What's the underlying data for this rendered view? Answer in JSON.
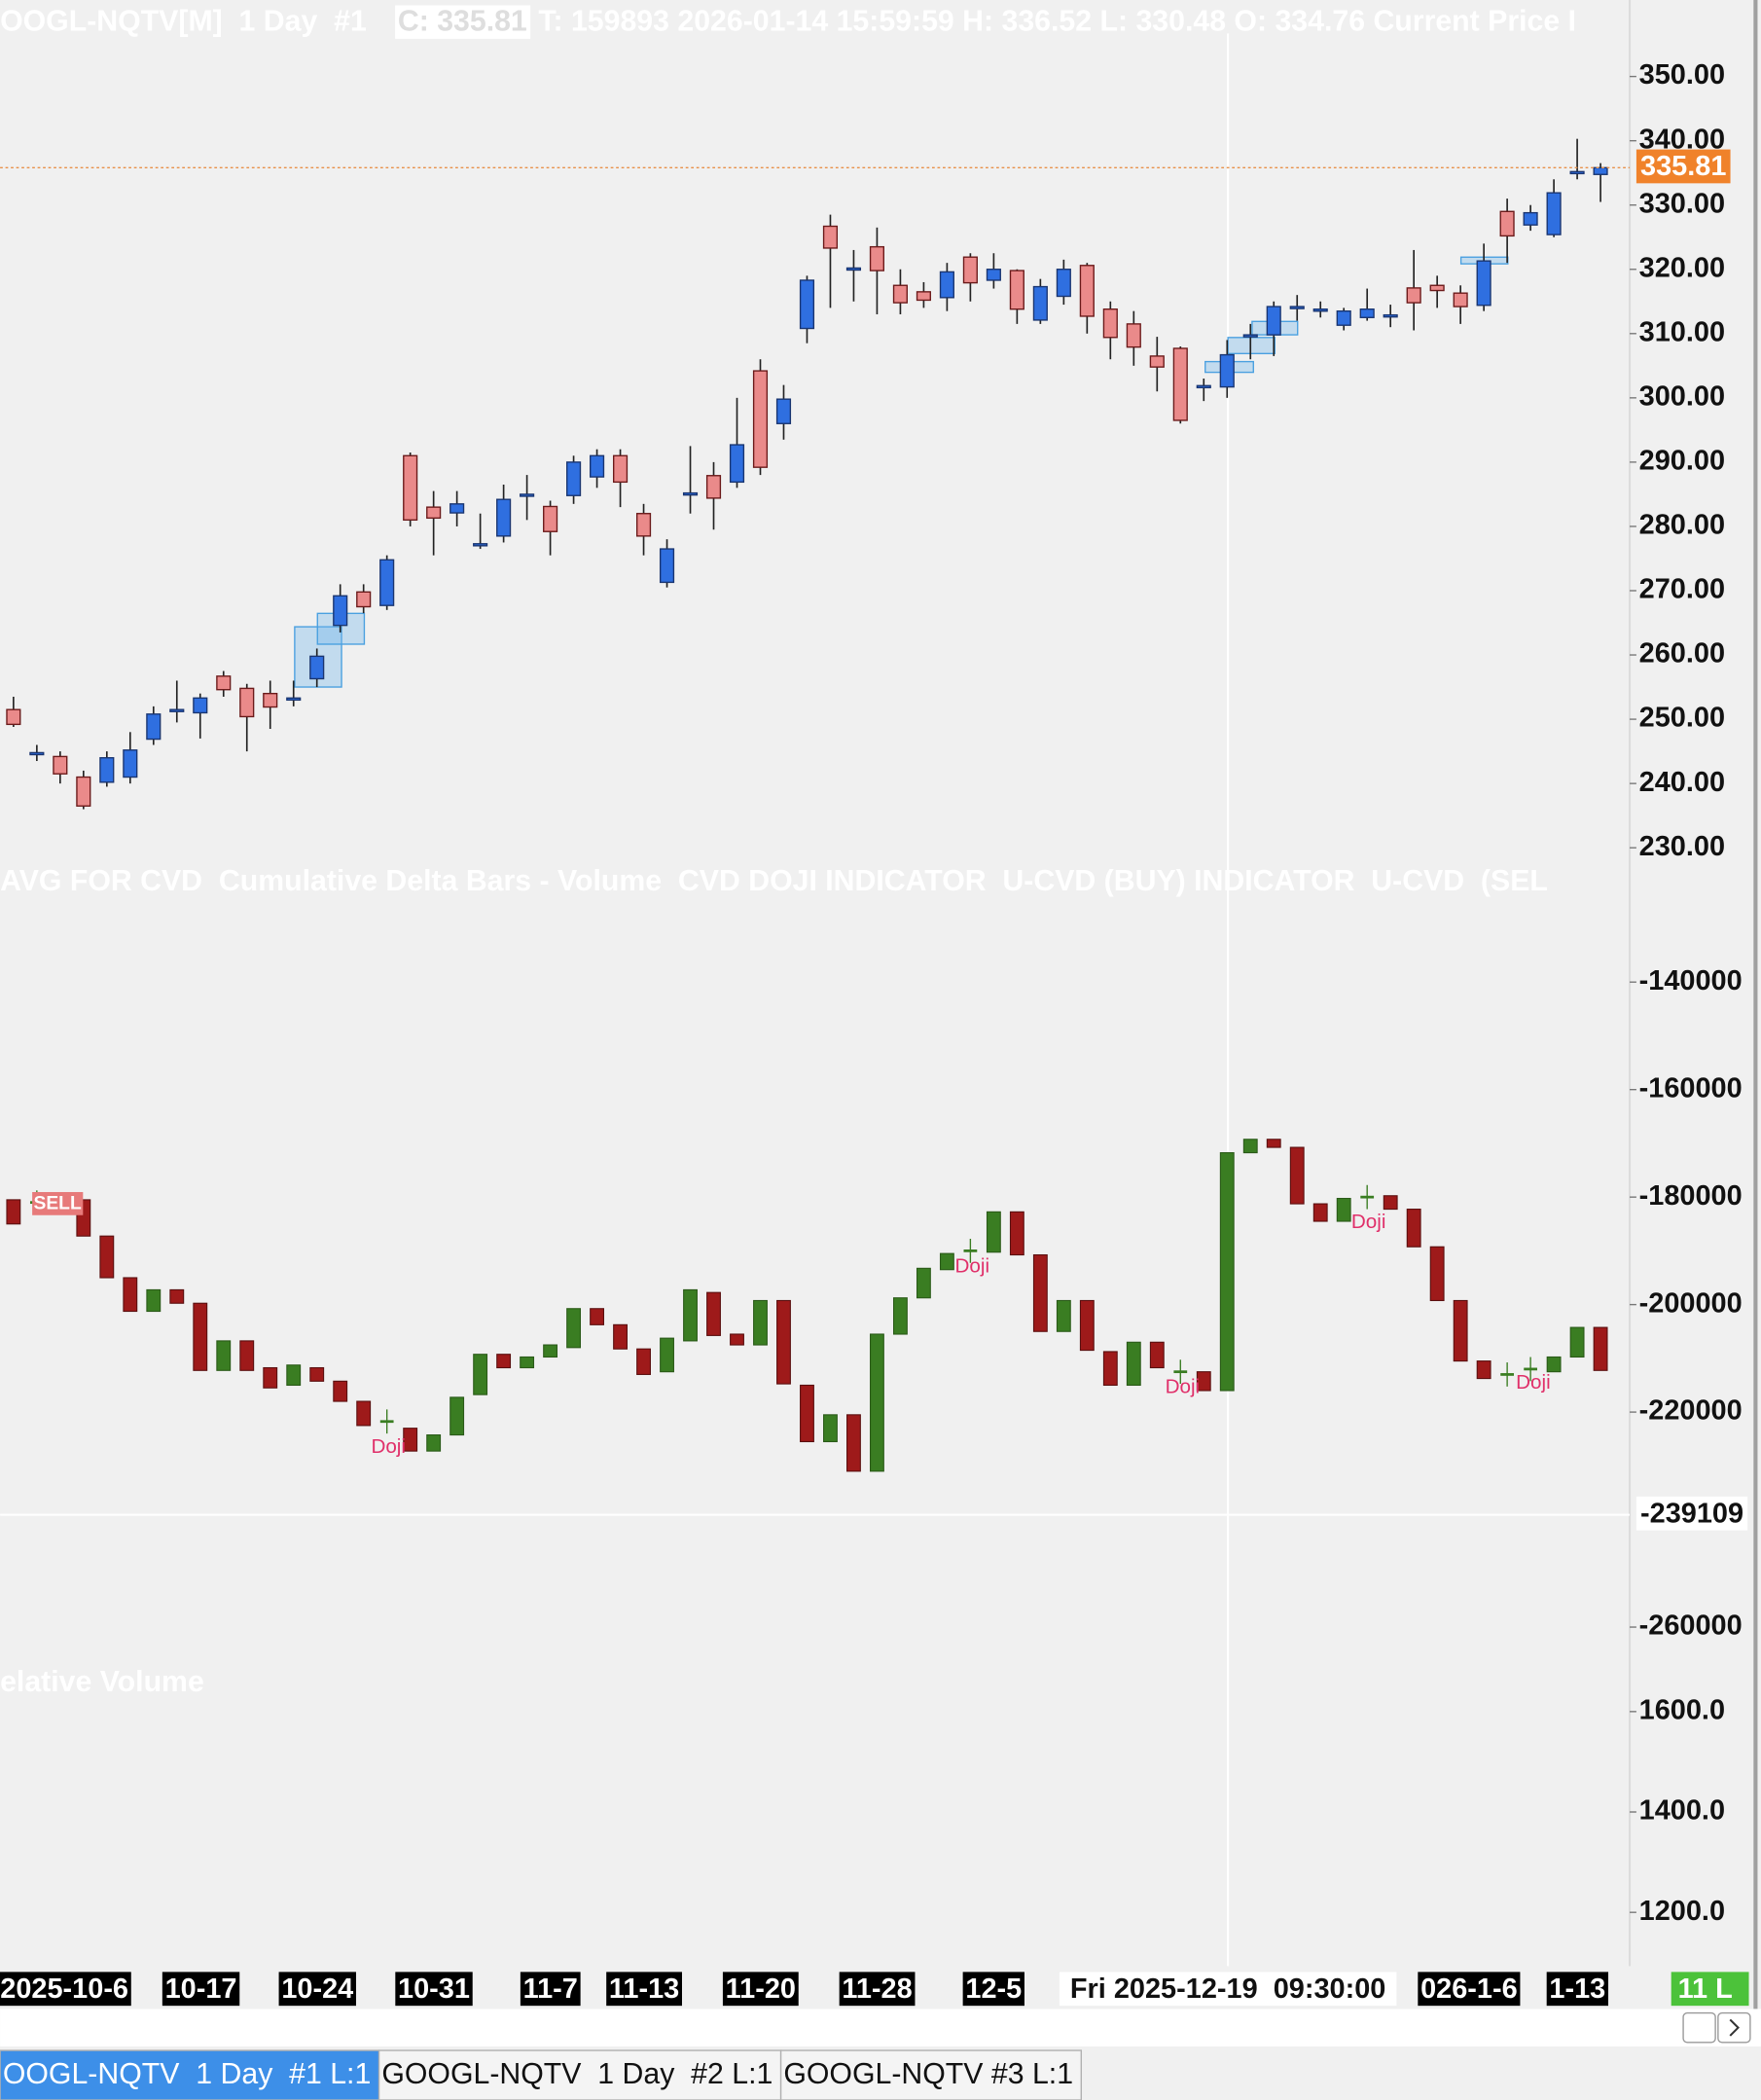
{
  "header": {
    "symbol": "OOGL-NQTV[M]  1 Day  #1",
    "close": "C: 335.81",
    "details": "T: 159893 2026-01-14 15:59:59 H: 336.52 L: 330.48 O: 334.76 Current Price I"
  },
  "price_panel": {
    "ylim": [
      227.5,
      361.9
    ],
    "yticks": [
      {
        "value": 350,
        "label": "350.00"
      },
      {
        "value": 340,
        "label": "340.00"
      },
      {
        "value": 330,
        "label": "330.00"
      },
      {
        "value": 320,
        "label": "320.00"
      },
      {
        "value": 310,
        "label": "310.00"
      },
      {
        "value": 300,
        "label": "300.00"
      },
      {
        "value": 290,
        "label": "290.00"
      },
      {
        "value": 280,
        "label": "280.00"
      },
      {
        "value": 270,
        "label": "270.00"
      },
      {
        "value": 260,
        "label": "260.00"
      },
      {
        "value": 250,
        "label": "250.00"
      },
      {
        "value": 240,
        "label": "240.00"
      },
      {
        "value": 230,
        "label": "230.00"
      }
    ],
    "current_price": 335.81,
    "open": [
      251.5,
      244.8,
      244.2,
      241,
      240.2,
      241,
      246.9,
      251.5,
      251,
      256.7,
      254.8,
      254,
      253.3,
      256.3,
      264.6,
      269.8,
      267.7,
      291,
      283,
      282.1,
      277.3,
      278.5,
      285,
      283.1,
      284.8,
      287.7,
      291,
      282,
      271.3,
      285.2,
      287.9,
      286.9,
      304.2,
      296,
      310.8,
      326.7,
      320.2,
      323.5,
      317.5,
      316.5,
      315.6,
      321.9,
      318.3,
      319.8,
      312.1,
      315.8,
      320.6,
      313.8,
      311.5,
      306.5,
      307.7,
      301.9,
      301.7,
      309.8,
      309.8,
      314.2,
      313.8,
      311.3,
      312.5,
      312.9,
      317.1,
      317.5,
      316.3,
      314.4,
      329,
      326.9,
      325.4,
      335.2,
      334.76
    ],
    "high": [
      253.5,
      246,
      245,
      242,
      245,
      248,
      252,
      256,
      254,
      257.5,
      255.5,
      256,
      256,
      261,
      271,
      271,
      275.5,
      291.5,
      285.5,
      285.5,
      282,
      286.5,
      288,
      284,
      291,
      292,
      292,
      283.5,
      278,
      292.5,
      290,
      300,
      306,
      302,
      319,
      328.5,
      323,
      326.5,
      320,
      318,
      321,
      322.5,
      322.5,
      320,
      318.5,
      321.5,
      321,
      315,
      313.5,
      309.5,
      308,
      303,
      309,
      311.5,
      315,
      316,
      315,
      314,
      317,
      314.5,
      323,
      319,
      317.5,
      324,
      331,
      330,
      334,
      340.3,
      336.52
    ],
    "low": [
      248.8,
      243.5,
      240,
      236,
      239.5,
      240,
      246,
      249.5,
      247,
      253.5,
      245,
      248.5,
      252,
      255,
      263.5,
      266.5,
      267,
      280,
      275.5,
      280,
      276.5,
      277.5,
      281,
      275.5,
      283.5,
      286,
      283,
      275.5,
      270.5,
      282,
      279.5,
      286,
      288,
      293.5,
      308.5,
      314,
      315,
      313,
      313,
      314,
      313.5,
      315,
      317,
      311.5,
      311.5,
      314.5,
      310,
      306,
      305,
      301,
      296,
      299.5,
      300,
      306,
      306.5,
      312,
      312.5,
      310.5,
      312,
      311,
      310.5,
      314,
      311.5,
      313.5,
      321,
      326,
      325,
      334,
      330.48
    ],
    "close": [
      249.2,
      244.8,
      241.5,
      236.5,
      244,
      245.2,
      250.8,
      251.5,
      253.3,
      254.6,
      250.4,
      251.9,
      253.3,
      259.8,
      269.2,
      267.5,
      274.8,
      281,
      281.3,
      283.5,
      277.3,
      284.2,
      285,
      279.2,
      290,
      291,
      286.9,
      278.5,
      276.5,
      285.2,
      284.4,
      292.7,
      289.2,
      299.8,
      318.3,
      323.3,
      320.2,
      319.8,
      314.8,
      315.2,
      319.6,
      317.9,
      320,
      313.8,
      317.3,
      320,
      312.7,
      309.4,
      307.9,
      304.8,
      296.5,
      301.9,
      306.7,
      309.8,
      314.2,
      314.2,
      313.8,
      313.5,
      313.8,
      312.9,
      314.8,
      316.7,
      314.2,
      321.3,
      325.2,
      328.8,
      331.9,
      335.2,
      335.81
    ]
  },
  "cvd_panel": {
    "title": "AVG FOR CVD  Cumulative Delta Bars - Volume  CVD DOJI INDICATOR  U-CVD (BUY) INDICATOR  U-CVD  (SEL",
    "ylim": [
      -267500,
      -118750
    ],
    "yticks": [
      -140000,
      -160000,
      -180000,
      -200000,
      -220000,
      -260000
    ],
    "current_value": -239109,
    "signal": "SELL",
    "annotations": [
      "Doji",
      "Doji",
      "Doji",
      "Doji",
      "Doji"
    ],
    "open": [
      -180500,
      -181000,
      -182000,
      -180500,
      -187250,
      -195000,
      -201250,
      -197250,
      -199750,
      -212250,
      -206750,
      -211750,
      -215000,
      -211750,
      -214250,
      -218000,
      -221750,
      -223000,
      -227250,
      -224250,
      -216750,
      -209250,
      -211750,
      -209750,
      -208000,
      -200750,
      -203750,
      -208250,
      -212500,
      -206750,
      -197750,
      -205500,
      -207500,
      -199250,
      -215000,
      -225500,
      -220500,
      -231000,
      -205500,
      -198750,
      -193500,
      -190000,
      -190250,
      -182750,
      -190750,
      -205000,
      -199250,
      -208750,
      -215000,
      -207000,
      -212500,
      -212500,
      -216000,
      -171750,
      -169250,
      -170750,
      -181250,
      -184500,
      -180000,
      -179750,
      -182250,
      -189250,
      -199250,
      -210500,
      -213000,
      -212000,
      -212500,
      -209750,
      -204250
    ],
    "close": [
      -185000,
      -181000,
      -181000,
      -187250,
      -195000,
      -201250,
      -197250,
      -199750,
      -212250,
      -206750,
      -212250,
      -215500,
      -211250,
      -214250,
      -218000,
      -222500,
      -221750,
      -227250,
      -224250,
      -217250,
      -209250,
      -211750,
      -209750,
      -207500,
      -200750,
      -203750,
      -208250,
      -213000,
      -206250,
      -197250,
      -205750,
      -207500,
      -199250,
      -214750,
      -225500,
      -220500,
      -231000,
      -205500,
      -198750,
      -193250,
      -190500,
      -190000,
      -182750,
      -190750,
      -205000,
      -199250,
      -208500,
      -215000,
      -207000,
      -211750,
      -212500,
      -216000,
      -171750,
      -169250,
      -170750,
      -181250,
      -184500,
      -180250,
      -180000,
      -182250,
      -189250,
      -199250,
      -210500,
      -213750,
      -213000,
      -212000,
      -209750,
      -204250,
      -212250
    ]
  },
  "volume_panel": {
    "title": "elative Volume",
    "ylim": [
      1101,
      1688
    ],
    "yticks": [
      {
        "value": 1600,
        "label": "1600.0"
      },
      {
        "value": 1400,
        "label": "1400.0"
      },
      {
        "value": 1200,
        "label": "1200.0"
      }
    ]
  },
  "x_axis": {
    "labels": [
      "2025-10-6",
      "10-17",
      "10-24",
      "10-31",
      "11-7",
      "11-13",
      "11-20",
      "11-28",
      "12-5",
      "026-1-6",
      "1-13"
    ],
    "crosshair": "Fri 2025-12-19  09:30:00"
  },
  "status": "11 L",
  "tabs": [
    "OOGL-NQTV  1 Day  #1 L:1",
    "GOOGL-NQTV  1 Day  #2 L:1",
    "GOOGL-NQTV #3 L:1"
  ]
}
